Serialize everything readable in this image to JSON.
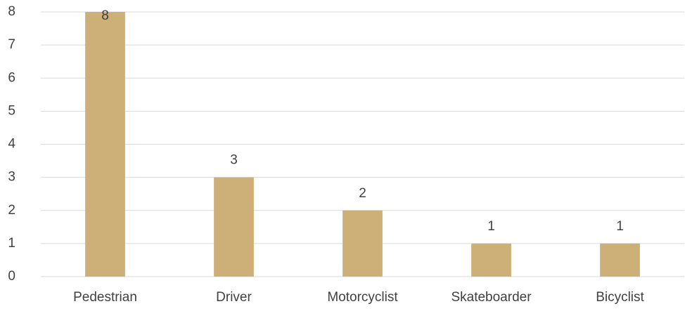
{
  "chart_data": {
    "type": "bar",
    "categories": [
      "Pedestrian",
      "Driver",
      "Motorcyclist",
      "Skateboarder",
      "Bicyclist"
    ],
    "values": [
      8,
      3,
      2,
      1,
      1
    ],
    "color": "#cdb077",
    "ylim": [
      0,
      8
    ],
    "yticks": [
      0,
      1,
      2,
      3,
      4,
      5,
      6,
      7,
      8
    ],
    "grid": true,
    "data_labels": true
  }
}
